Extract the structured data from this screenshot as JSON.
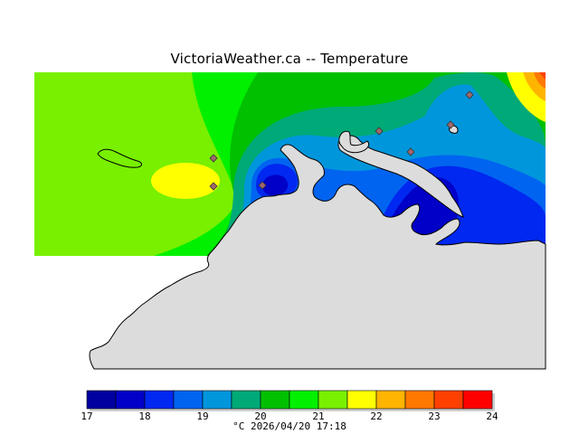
{
  "title": "VictoriaWeather.ca -- Temperature",
  "legend": {
    "unit": "°C",
    "timestamp": "2026/04/20 17:18",
    "ticks": [
      "17",
      "18",
      "19",
      "20",
      "21",
      "22",
      "23",
      "24"
    ],
    "bins": [
      {
        "from": 17.0,
        "to": 17.5,
        "color": "#0000a0"
      },
      {
        "from": 17.5,
        "to": 18.0,
        "color": "#0000c8"
      },
      {
        "from": 18.0,
        "to": 18.5,
        "color": "#0028f0"
      },
      {
        "from": 18.5,
        "to": 19.0,
        "color": "#0064f0"
      },
      {
        "from": 19.0,
        "to": 19.5,
        "color": "#0096dc"
      },
      {
        "from": 19.5,
        "to": 20.0,
        "color": "#00aa78"
      },
      {
        "from": 20.0,
        "to": 20.5,
        "color": "#00c000"
      },
      {
        "from": 20.5,
        "to": 21.0,
        "color": "#00f000"
      },
      {
        "from": 21.0,
        "to": 21.5,
        "color": "#78f000"
      },
      {
        "from": 21.5,
        "to": 22.0,
        "color": "#ffff00"
      },
      {
        "from": 22.0,
        "to": 22.5,
        "color": "#ffb400"
      },
      {
        "from": 22.5,
        "to": 23.0,
        "color": "#ff7800"
      },
      {
        "from": 23.0,
        "to": 23.5,
        "color": "#ff4000"
      },
      {
        "from": 23.5,
        "to": 24.0,
        "color": "#ff0000"
      }
    ]
  },
  "colors": {
    "land": "#dcdcdc",
    "coastline": "#000000",
    "station_marker": "#a0686c"
  }
}
